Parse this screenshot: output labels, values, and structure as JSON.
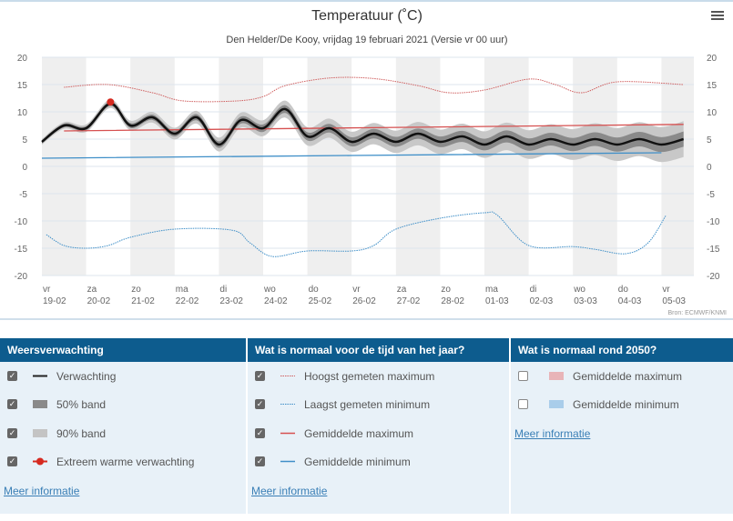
{
  "chart_data": {
    "type": "line",
    "title": "Temperatuur (˚C)",
    "subtitle": "Den Helder/De Kooy, vrijdag 19 februari 2021 (Versie vr 00 uur)",
    "source": "Bron: ECMWF/KNMI",
    "ylim": [
      -20,
      20
    ],
    "yticks": [
      20,
      15,
      10,
      5,
      0,
      -5,
      -10,
      -15,
      -20
    ],
    "xticks": [
      [
        "vr",
        "19-02"
      ],
      [
        "za",
        "20-02"
      ],
      [
        "zo",
        "21-02"
      ],
      [
        "ma",
        "22-02"
      ],
      [
        "di",
        "23-02"
      ],
      [
        "wo",
        "24-02"
      ],
      [
        "do",
        "25-02"
      ],
      [
        "vr",
        "26-02"
      ],
      [
        "za",
        "27-02"
      ],
      [
        "zo",
        "28-02"
      ],
      [
        "ma",
        "01-03"
      ],
      [
        "di",
        "02-03"
      ],
      [
        "wo",
        "03-03"
      ],
      [
        "do",
        "04-03"
      ],
      [
        "vr",
        "05-03"
      ]
    ],
    "x_unit": "days since 19-02 00 uur",
    "grid": true,
    "colors": {
      "forecast": "#111111",
      "band50": "#8a8a8a",
      "band90": "#c8c8c8",
      "extreme": "#d62a20",
      "record_max": "#d06060",
      "record_min": "#3f8fc8",
      "avg_max": "#d65050",
      "avg_min": "#3f8fc8"
    },
    "forecast": {
      "x": [
        0,
        0.5,
        1,
        1.55,
        2,
        2.5,
        3,
        3.5,
        4,
        4.5,
        5,
        5.5,
        6,
        6.5,
        7,
        7.5,
        8,
        8.5,
        9,
        9.5,
        10,
        10.5,
        11,
        11.5,
        12,
        12.5,
        13,
        13.5,
        14,
        14.5
      ],
      "y": [
        4.5,
        7.5,
        7,
        11.5,
        7.5,
        9,
        6,
        9,
        4,
        8.5,
        7,
        10.5,
        5.5,
        7,
        4.5,
        6,
        4.5,
        6,
        4.5,
        5.5,
        4,
        5.5,
        4,
        5,
        4,
        5,
        4,
        5,
        4,
        5
      ]
    },
    "extreme_warm": {
      "x": 1.55,
      "y": 11.8
    },
    "record_max": {
      "x": [
        0.5,
        1.5,
        2.5,
        3.2,
        4.4,
        5,
        5.5,
        6.5,
        7.5,
        8.5,
        9.2,
        10,
        11,
        11.6,
        12.2,
        13,
        14.5
      ],
      "y": [
        14.5,
        15,
        13.5,
        12,
        12,
        12.8,
        14.8,
        16.2,
        16.1,
        14.8,
        13.5,
        14,
        16,
        15,
        13.5,
        15.5,
        15
      ]
    },
    "record_min": {
      "x": [
        0.1,
        0.5,
        1,
        1.5,
        2,
        3,
        4.3,
        4.7,
        5.2,
        6,
        7,
        7.5,
        8,
        9,
        10,
        10.3,
        11,
        12,
        12.5,
        13.2,
        13.7,
        14.1
      ],
      "y": [
        -12.5,
        -14.5,
        -15,
        -14.5,
        -13,
        -11.5,
        -11.7,
        -14,
        -16.5,
        -15.5,
        -15.5,
        -14.5,
        -11.5,
        -9.5,
        -8.5,
        -9,
        -14.5,
        -14.7,
        -15.2,
        -16,
        -14,
        -9
      ]
    },
    "avg_max": {
      "x": [
        0.5,
        14.5
      ],
      "y": [
        6.5,
        7.7
      ]
    },
    "avg_min": {
      "x": [
        0,
        14
      ],
      "y": [
        1.5,
        2.5
      ]
    }
  },
  "legend": {
    "col1": {
      "title": "Weersverwachting",
      "items": [
        "Verwachting",
        "50% band",
        "90% band",
        "Extreem warme verwachting"
      ],
      "link": "Meer informatie"
    },
    "col2": {
      "title": "Wat is normaal voor de tijd van het jaar?",
      "items": [
        "Hoogst gemeten maximum",
        "Laagst gemeten minimum",
        "Gemiddelde maximum",
        "Gemiddelde minimum"
      ],
      "link": "Meer informatie"
    },
    "col3": {
      "title": "Wat is normaal rond 2050?",
      "items": [
        "Gemiddelde maximum",
        "Gemiddelde minimum"
      ],
      "link": "Meer informatie"
    }
  }
}
